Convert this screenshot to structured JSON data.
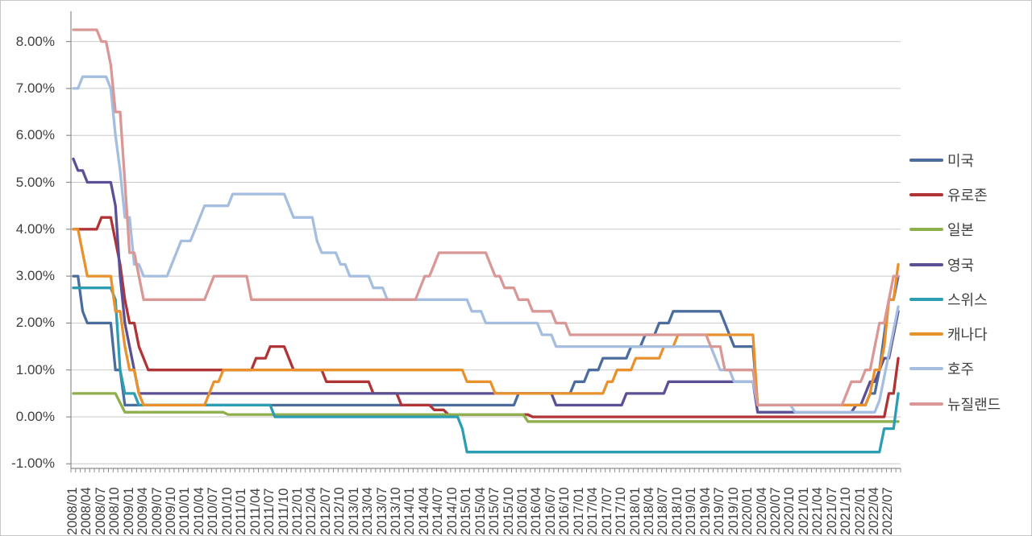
{
  "chart_data": {
    "type": "line",
    "title": "",
    "xlabel": "",
    "ylabel": "",
    "x_unit": "month",
    "x_start": "2008/01",
    "x_end": "2022/09",
    "grid": true,
    "legend_position": "right",
    "ylim": [
      -1.05,
      8.65
    ],
    "yticks": [
      8,
      7,
      6,
      5,
      4,
      3,
      2,
      1,
      0,
      -1
    ],
    "ytick_labels": [
      "8.00%",
      "7.00%",
      "6.00%",
      "5.00%",
      "4.00%",
      "3.00%",
      "2.00%",
      "1.00%",
      "0.00%",
      "-1.00%"
    ],
    "xtick_labels": [
      "2008/01",
      "2008/04",
      "2008/07",
      "2008/10",
      "2009/01",
      "2009/04",
      "2009/07",
      "2009/10",
      "2010/01",
      "2010/04",
      "2010/07",
      "2010/10",
      "2011/01",
      "2011/04",
      "2011/07",
      "2011/10",
      "2012/01",
      "2012/04",
      "2012/07",
      "2012/10",
      "2013/01",
      "2013/04",
      "2013/07",
      "2013/10",
      "2014/01",
      "2014/04",
      "2014/07",
      "2014/10",
      "2015/01",
      "2015/04",
      "2015/07",
      "2015/10",
      "2016/01",
      "2016/04",
      "2016/07",
      "2016/10",
      "2017/01",
      "2017/04",
      "2017/07",
      "2017/10",
      "2018/01",
      "2018/04",
      "2018/07",
      "2018/10",
      "2019/01",
      "2019/04",
      "2019/07",
      "2019/10",
      "2020/01",
      "2020/04",
      "2020/07",
      "2020/10",
      "2021/01",
      "2021/04",
      "2021/07",
      "2021/10",
      "2022/01",
      "2022/04",
      "2022/07"
    ],
    "xtick_label_every_months": 3,
    "series_note": "values are policy-rate step changes in percent; each value holds until the next step, monthly resolution",
    "series": [
      {
        "key": "usa",
        "name": "미국",
        "color": "#4A6D9E",
        "steps": [
          [
            "2008/01",
            3.0
          ],
          [
            "2008/03",
            2.25
          ],
          [
            "2008/04",
            2.0
          ],
          [
            "2008/10",
            1.0
          ],
          [
            "2008/12",
            0.25
          ],
          [
            "2015/12",
            0.5
          ],
          [
            "2016/12",
            0.75
          ],
          [
            "2017/03",
            1.0
          ],
          [
            "2017/06",
            1.25
          ],
          [
            "2017/12",
            1.5
          ],
          [
            "2018/03",
            1.75
          ],
          [
            "2018/06",
            2.0
          ],
          [
            "2018/09",
            2.25
          ],
          [
            "2019/08",
            2.0
          ],
          [
            "2019/09",
            1.75
          ],
          [
            "2019/10",
            1.5
          ],
          [
            "2020/03",
            0.25
          ],
          [
            "2022/03",
            0.5
          ],
          [
            "2022/05",
            1.0
          ],
          [
            "2022/06",
            1.75
          ],
          [
            "2022/07",
            2.5
          ],
          [
            "2022/09",
            3.0
          ]
        ]
      },
      {
        "key": "eurozone",
        "name": "유로존",
        "color": "#B03435",
        "steps": [
          [
            "2008/01",
            4.0
          ],
          [
            "2008/07",
            4.25
          ],
          [
            "2008/10",
            3.75
          ],
          [
            "2008/11",
            3.25
          ],
          [
            "2008/12",
            2.5
          ],
          [
            "2009/01",
            2.0
          ],
          [
            "2009/03",
            1.5
          ],
          [
            "2009/04",
            1.25
          ],
          [
            "2009/05",
            1.0
          ],
          [
            "2011/04",
            1.25
          ],
          [
            "2011/07",
            1.5
          ],
          [
            "2011/11",
            1.25
          ],
          [
            "2011/12",
            1.0
          ],
          [
            "2012/07",
            0.75
          ],
          [
            "2013/05",
            0.5
          ],
          [
            "2013/11",
            0.25
          ],
          [
            "2014/06",
            0.15
          ],
          [
            "2014/09",
            0.05
          ],
          [
            "2016/03",
            0.0
          ],
          [
            "2022/07",
            0.5
          ],
          [
            "2022/09",
            1.25
          ]
        ]
      },
      {
        "key": "japan",
        "name": "일본",
        "color": "#8FAE4C",
        "steps": [
          [
            "2008/01",
            0.5
          ],
          [
            "2008/11",
            0.3
          ],
          [
            "2008/12",
            0.1
          ],
          [
            "2010/10",
            0.05
          ],
          [
            "2016/02",
            -0.1
          ]
        ]
      },
      {
        "key": "uk",
        "name": "영국",
        "color": "#5B4F95",
        "steps": [
          [
            "2008/01",
            5.5
          ],
          [
            "2008/02",
            5.25
          ],
          [
            "2008/04",
            5.0
          ],
          [
            "2008/10",
            4.5
          ],
          [
            "2008/11",
            3.0
          ],
          [
            "2008/12",
            2.0
          ],
          [
            "2009/01",
            1.5
          ],
          [
            "2009/02",
            1.0
          ],
          [
            "2009/03",
            0.5
          ],
          [
            "2016/08",
            0.25
          ],
          [
            "2017/11",
            0.5
          ],
          [
            "2018/08",
            0.75
          ],
          [
            "2020/03",
            0.1
          ],
          [
            "2021/12",
            0.25
          ],
          [
            "2022/02",
            0.5
          ],
          [
            "2022/03",
            0.75
          ],
          [
            "2022/05",
            1.0
          ],
          [
            "2022/06",
            1.25
          ],
          [
            "2022/08",
            1.75
          ],
          [
            "2022/09",
            2.25
          ]
        ]
      },
      {
        "key": "switzerland",
        "name": "스위스",
        "color": "#2D9DB4",
        "steps": [
          [
            "2008/01",
            2.75
          ],
          [
            "2008/10",
            2.5
          ],
          [
            "2008/11",
            1.0
          ],
          [
            "2008/12",
            0.5
          ],
          [
            "2009/03",
            0.25
          ],
          [
            "2011/08",
            0.0
          ],
          [
            "2014/12",
            -0.25
          ],
          [
            "2015/01",
            -0.75
          ],
          [
            "2022/06",
            -0.25
          ],
          [
            "2022/09",
            0.5
          ]
        ]
      },
      {
        "key": "canada",
        "name": "캐나다",
        "color": "#E8912D",
        "steps": [
          [
            "2008/01",
            4.0
          ],
          [
            "2008/03",
            3.5
          ],
          [
            "2008/04",
            3.0
          ],
          [
            "2008/10",
            2.25
          ],
          [
            "2008/12",
            1.5
          ],
          [
            "2009/01",
            1.0
          ],
          [
            "2009/03",
            0.5
          ],
          [
            "2009/04",
            0.25
          ],
          [
            "2010/06",
            0.5
          ],
          [
            "2010/07",
            0.75
          ],
          [
            "2010/09",
            1.0
          ],
          [
            "2015/01",
            0.75
          ],
          [
            "2015/07",
            0.5
          ],
          [
            "2017/07",
            0.75
          ],
          [
            "2017/09",
            1.0
          ],
          [
            "2018/01",
            1.25
          ],
          [
            "2018/07",
            1.5
          ],
          [
            "2018/10",
            1.75
          ],
          [
            "2020/03",
            0.25
          ],
          [
            "2022/03",
            0.5
          ],
          [
            "2022/04",
            1.0
          ],
          [
            "2022/06",
            1.5
          ],
          [
            "2022/07",
            2.5
          ],
          [
            "2022/09",
            3.25
          ]
        ]
      },
      {
        "key": "australia",
        "name": "호주",
        "color": "#A5BEE0",
        "steps": [
          [
            "2008/01",
            7.0
          ],
          [
            "2008/03",
            7.25
          ],
          [
            "2008/09",
            7.0
          ],
          [
            "2008/10",
            6.0
          ],
          [
            "2008/11",
            5.25
          ],
          [
            "2008/12",
            4.25
          ],
          [
            "2009/02",
            3.25
          ],
          [
            "2009/04",
            3.0
          ],
          [
            "2009/10",
            3.25
          ],
          [
            "2009/11",
            3.5
          ],
          [
            "2009/12",
            3.75
          ],
          [
            "2010/03",
            4.0
          ],
          [
            "2010/04",
            4.25
          ],
          [
            "2010/05",
            4.5
          ],
          [
            "2010/11",
            4.75
          ],
          [
            "2011/11",
            4.5
          ],
          [
            "2011/12",
            4.25
          ],
          [
            "2012/05",
            3.75
          ],
          [
            "2012/06",
            3.5
          ],
          [
            "2012/10",
            3.25
          ],
          [
            "2012/12",
            3.0
          ],
          [
            "2013/05",
            2.75
          ],
          [
            "2013/08",
            2.5
          ],
          [
            "2015/02",
            2.25
          ],
          [
            "2015/05",
            2.0
          ],
          [
            "2016/05",
            1.75
          ],
          [
            "2016/08",
            1.5
          ],
          [
            "2019/06",
            1.25
          ],
          [
            "2019/07",
            1.0
          ],
          [
            "2019/10",
            0.75
          ],
          [
            "2020/03",
            0.25
          ],
          [
            "2020/11",
            0.1
          ],
          [
            "2022/05",
            0.35
          ],
          [
            "2022/06",
            0.85
          ],
          [
            "2022/07",
            1.35
          ],
          [
            "2022/08",
            1.85
          ],
          [
            "2022/09",
            2.35
          ]
        ]
      },
      {
        "key": "new-zealand",
        "name": "뉴질랜드",
        "color": "#D99795",
        "steps": [
          [
            "2008/01",
            8.25
          ],
          [
            "2008/07",
            8.0
          ],
          [
            "2008/09",
            7.5
          ],
          [
            "2008/10",
            6.5
          ],
          [
            "2008/12",
            5.0
          ],
          [
            "2009/01",
            3.5
          ],
          [
            "2009/03",
            3.0
          ],
          [
            "2009/04",
            2.5
          ],
          [
            "2010/06",
            2.75
          ],
          [
            "2010/07",
            3.0
          ],
          [
            "2011/03",
            2.5
          ],
          [
            "2014/03",
            2.75
          ],
          [
            "2014/04",
            3.0
          ],
          [
            "2014/06",
            3.25
          ],
          [
            "2014/07",
            3.5
          ],
          [
            "2015/06",
            3.25
          ],
          [
            "2015/07",
            3.0
          ],
          [
            "2015/09",
            2.75
          ],
          [
            "2015/12",
            2.5
          ],
          [
            "2016/03",
            2.25
          ],
          [
            "2016/08",
            2.0
          ],
          [
            "2016/11",
            1.75
          ],
          [
            "2019/05",
            1.5
          ],
          [
            "2019/08",
            1.0
          ],
          [
            "2020/03",
            0.25
          ],
          [
            "2021/10",
            0.5
          ],
          [
            "2021/11",
            0.75
          ],
          [
            "2022/02",
            1.0
          ],
          [
            "2022/04",
            1.5
          ],
          [
            "2022/05",
            2.0
          ],
          [
            "2022/07",
            2.5
          ],
          [
            "2022/08",
            3.0
          ]
        ]
      }
    ],
    "style": {
      "gridline_color": "#c9c9c9",
      "axis_color": "#8e8e8e",
      "text_color": "#3f3f3f",
      "background": "#ffffff"
    }
  }
}
